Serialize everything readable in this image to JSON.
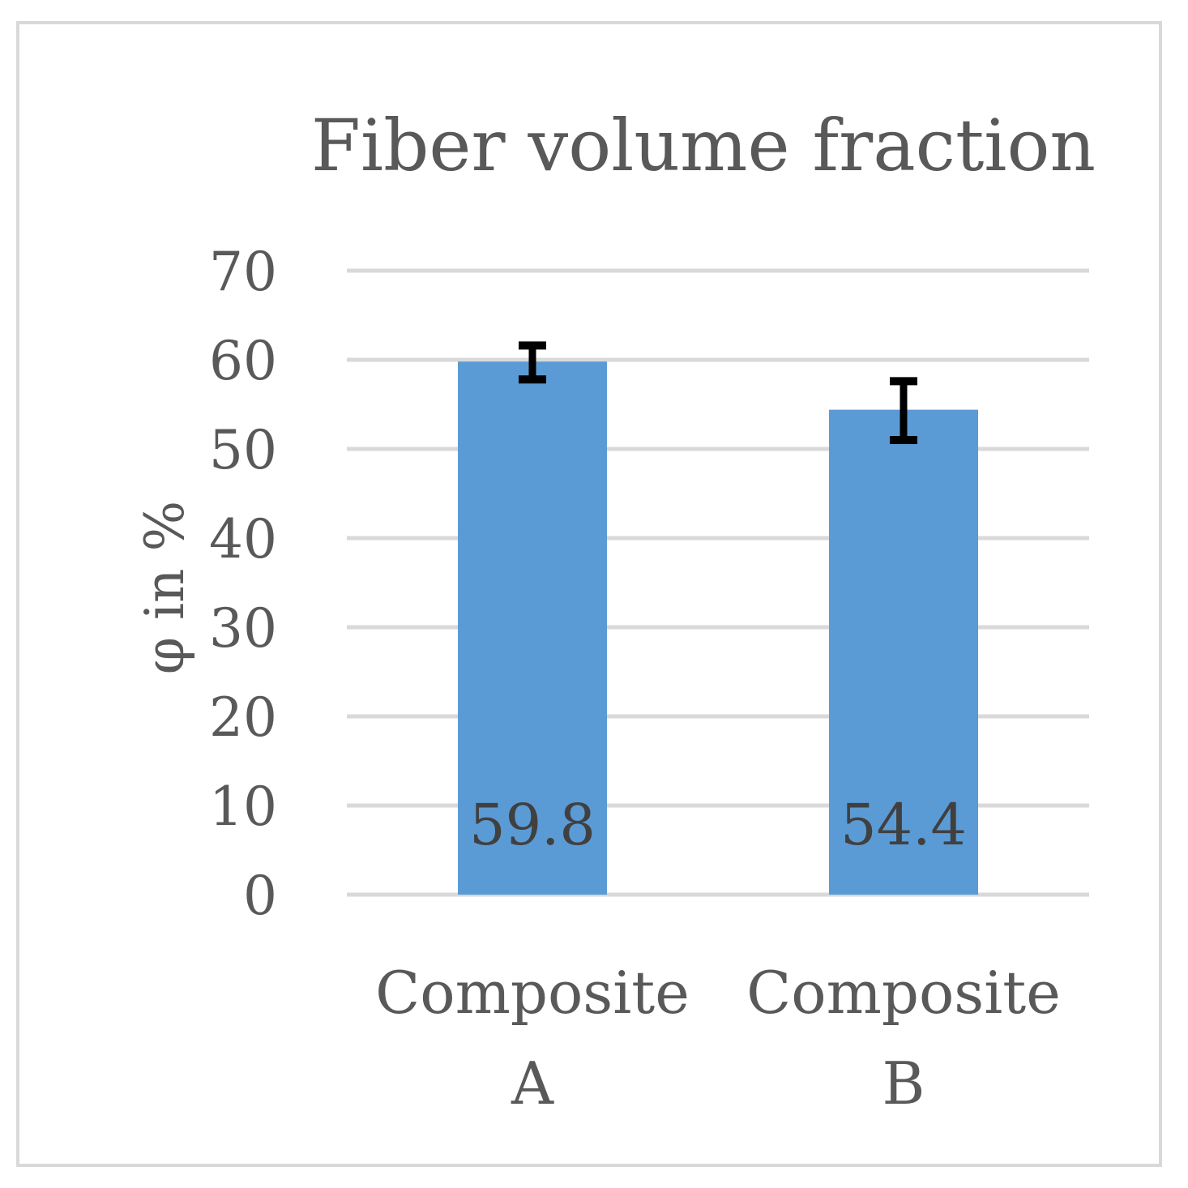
{
  "chart_data": {
    "type": "bar",
    "title": "Fiber volume fraction",
    "ylabel": "φ in %",
    "xlabel": "",
    "ylim": [
      0,
      70
    ],
    "yticks": [
      0,
      10,
      20,
      30,
      40,
      50,
      60,
      70
    ],
    "y_tick_labels": [
      "0",
      "10",
      "20",
      "30",
      "40",
      "50",
      "60",
      "70"
    ],
    "grid": true,
    "legend": "none",
    "categories": [
      {
        "line1": "Composite",
        "line2": "A"
      },
      {
        "line1": "Composite",
        "line2": "B"
      }
    ],
    "values": [
      59.8,
      54.4
    ],
    "data_labels": [
      "59.8",
      "54.4"
    ],
    "error_bars": [
      {
        "low": 57.8,
        "high": 61.6
      },
      {
        "low": 51.0,
        "high": 57.6
      }
    ],
    "colors": {
      "bar": "#5b9bd5",
      "grid": "#d9d9d9",
      "text": "#595959",
      "data_label": "#404040",
      "error_bar": "#000000"
    }
  }
}
